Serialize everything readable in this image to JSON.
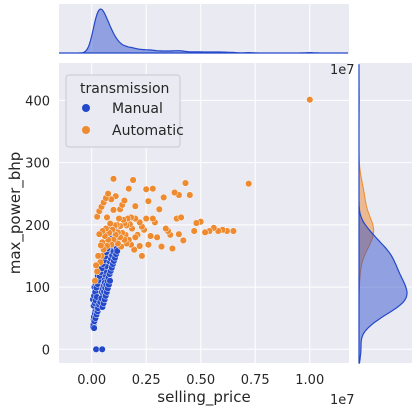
{
  "chart_data": {
    "type": "scatter",
    "style": "jointplot with marginal KDE/histograms",
    "xlabel": "selling_price",
    "ylabel": "max_power_bhp",
    "x_offset_label": "1e7",
    "xlim": [
      -1500000,
      11800000
    ],
    "ylim": [
      -22,
      460
    ],
    "x_ticks": [
      0.0,
      0.25,
      0.5,
      0.75,
      1.0
    ],
    "x_tick_labels": [
      "0.00",
      "0.25",
      "0.50",
      "0.75",
      "1.00"
    ],
    "y_ticks": [
      0,
      100,
      200,
      300,
      400
    ],
    "y_tick_labels": [
      "0",
      "100",
      "200",
      "300",
      "400"
    ],
    "grid": true,
    "legend": {
      "title": "transmission",
      "placement": "top-left",
      "entries": [
        {
          "name": "Manual",
          "color": "#2348c9"
        },
        {
          "name": "Automatic",
          "color": "#ee8a2f"
        }
      ]
    },
    "colors": {
      "background": "#eaeaf2",
      "grid": "#ffffff",
      "manual": "#2348c9",
      "automatic": "#ee8a2f"
    },
    "series": [
      {
        "name": "Manual",
        "points": [
          [
            60000,
            36
          ],
          [
            80000,
            40
          ],
          [
            100000,
            46
          ],
          [
            110000,
            34
          ],
          [
            120000,
            52
          ],
          [
            130000,
            58
          ],
          [
            140000,
            47
          ],
          [
            150000,
            63
          ],
          [
            160000,
            67
          ],
          [
            170000,
            55
          ],
          [
            180000,
            70
          ],
          [
            190000,
            74
          ],
          [
            200000,
            68
          ],
          [
            210000,
            82
          ],
          [
            220000,
            76
          ],
          [
            230000,
            88
          ],
          [
            240000,
            62
          ],
          [
            250000,
            90
          ],
          [
            260000,
            84
          ],
          [
            270000,
            98
          ],
          [
            280000,
            72
          ],
          [
            290000,
            95
          ],
          [
            300000,
            103
          ],
          [
            310000,
            86
          ],
          [
            320000,
            110
          ],
          [
            330000,
            92
          ],
          [
            340000,
            78
          ],
          [
            350000,
            118
          ],
          [
            360000,
            101
          ],
          [
            370000,
            122
          ],
          [
            380000,
            106
          ],
          [
            390000,
            88
          ],
          [
            400000,
            126
          ],
          [
            410000,
            112
          ],
          [
            420000,
            97
          ],
          [
            430000,
            130
          ],
          [
            440000,
            118
          ],
          [
            450000,
            104
          ],
          [
            460000,
            136
          ],
          [
            470000,
            124
          ],
          [
            480000,
            90
          ],
          [
            490000,
            142
          ],
          [
            500000,
            127
          ],
          [
            520000,
            109
          ],
          [
            540000,
            148
          ],
          [
            560000,
            132
          ],
          [
            580000,
            114
          ],
          [
            600000,
            151
          ],
          [
            620000,
            138
          ],
          [
            640000,
            121
          ],
          [
            660000,
            157
          ],
          [
            680000,
            143
          ],
          [
            700000,
            128
          ],
          [
            720000,
            162
          ],
          [
            740000,
            147
          ],
          [
            760000,
            133
          ],
          [
            780000,
            170
          ],
          [
            800000,
            154
          ],
          [
            820000,
            141
          ],
          [
            840000,
            176
          ],
          [
            860000,
            159
          ],
          [
            880000,
            146
          ],
          [
            900000,
            183
          ],
          [
            920000,
            164
          ],
          [
            940000,
            151
          ],
          [
            960000,
            188
          ],
          [
            980000,
            170
          ],
          [
            1000000,
            157
          ],
          [
            1050000,
            194
          ],
          [
            1100000,
            176
          ],
          [
            1150000,
            162
          ],
          [
            1200000,
            199
          ],
          [
            1250000,
            181
          ],
          [
            90000,
            48
          ],
          [
            140000,
            60
          ],
          [
            190000,
            69
          ],
          [
            240000,
            80
          ],
          [
            290000,
            87
          ],
          [
            340000,
            94
          ],
          [
            390000,
            101
          ],
          [
            440000,
            108
          ],
          [
            490000,
            114
          ],
          [
            540000,
            120
          ],
          [
            590000,
            126
          ],
          [
            640000,
            133
          ],
          [
            100000,
            52
          ],
          [
            150000,
            57
          ],
          [
            200000,
            63
          ],
          [
            250000,
            70
          ],
          [
            300000,
            75
          ],
          [
            350000,
            81
          ],
          [
            400000,
            86
          ],
          [
            450000,
            92
          ],
          [
            500000,
            97
          ],
          [
            550000,
            102
          ],
          [
            600000,
            107
          ],
          [
            120000,
            45
          ],
          [
            170000,
            50
          ],
          [
            220000,
            56
          ],
          [
            270000,
            61
          ],
          [
            320000,
            67
          ],
          [
            370000,
            72
          ],
          [
            420000,
            77
          ],
          [
            470000,
            83
          ],
          [
            520000,
            88
          ],
          [
            570000,
            93
          ],
          [
            620000,
            99
          ],
          [
            670000,
            104
          ],
          [
            720000,
            110
          ],
          [
            770000,
            115
          ],
          [
            820000,
            121
          ],
          [
            870000,
            126
          ],
          [
            920000,
            131
          ],
          [
            970000,
            137
          ],
          [
            1020000,
            142
          ],
          [
            1070000,
            147
          ],
          [
            1120000,
            153
          ],
          [
            1170000,
            158
          ],
          [
            200000,
            0
          ],
          [
            480000,
            0
          ],
          [
            130000,
            100
          ],
          [
            180000,
            105
          ],
          [
            230000,
            112
          ],
          [
            280000,
            118
          ],
          [
            330000,
            124
          ],
          [
            380000,
            131
          ],
          [
            430000,
            137
          ],
          [
            480000,
            143
          ],
          [
            530000,
            150
          ],
          [
            580000,
            156
          ],
          [
            630000,
            162
          ],
          [
            680000,
            169
          ],
          [
            730000,
            175
          ],
          [
            780000,
            181
          ],
          [
            830000,
            188
          ],
          [
            880000,
            194
          ],
          [
            60000,
            80
          ],
          [
            110000,
            86
          ],
          [
            160000,
            92
          ],
          [
            210000,
            99
          ],
          [
            260000,
            105
          ],
          [
            310000,
            111
          ],
          [
            360000,
            118
          ],
          [
            410000,
            124
          ],
          [
            460000,
            130
          ],
          [
            510000,
            137
          ],
          [
            560000,
            143
          ],
          [
            610000,
            149
          ],
          [
            660000,
            156
          ],
          [
            710000,
            162
          ],
          [
            760000,
            168
          ],
          [
            810000,
            175
          ],
          [
            90000,
            70
          ],
          [
            140000,
            74
          ],
          [
            190000,
            78
          ],
          [
            240000,
            84
          ],
          [
            290000,
            66
          ],
          [
            340000,
            72
          ],
          [
            390000,
            76
          ],
          [
            440000,
            82
          ],
          [
            490000,
            68
          ],
          [
            540000,
            74
          ],
          [
            590000,
            80
          ],
          [
            640000,
            86
          ],
          [
            690000,
            92
          ],
          [
            740000,
            98
          ],
          [
            790000,
            104
          ],
          [
            840000,
            110
          ]
        ]
      },
      {
        "name": "Automatic",
        "points": [
          [
            10000000,
            401
          ],
          [
            7200000,
            266
          ],
          [
            6500000,
            190
          ],
          [
            6200000,
            190
          ],
          [
            6000000,
            192
          ],
          [
            5800000,
            190
          ],
          [
            5600000,
            195
          ],
          [
            5400000,
            190
          ],
          [
            5200000,
            188
          ],
          [
            5000000,
            205
          ],
          [
            4800000,
            203
          ],
          [
            4700000,
            190
          ],
          [
            4500000,
            248
          ],
          [
            4300000,
            267
          ],
          [
            4200000,
            175
          ],
          [
            4000000,
            185
          ],
          [
            4000000,
            248
          ],
          [
            3900000,
            210
          ],
          [
            3800000,
            252
          ],
          [
            3700000,
            162
          ],
          [
            3600000,
            184
          ],
          [
            3500000,
            190
          ],
          [
            3400000,
            194
          ],
          [
            3200000,
            165
          ],
          [
            3000000,
            180
          ],
          [
            2900000,
            204
          ],
          [
            2800000,
            210
          ],
          [
            2800000,
            258
          ],
          [
            2700000,
            182
          ],
          [
            2600000,
            168
          ],
          [
            2500000,
            210
          ],
          [
            2500000,
            257
          ],
          [
            2400000,
            192
          ],
          [
            2300000,
            150
          ],
          [
            2300000,
            197
          ],
          [
            2200000,
            166
          ],
          [
            2200000,
            204
          ],
          [
            2100000,
            184
          ],
          [
            2000000,
            180
          ],
          [
            2000000,
            210
          ],
          [
            1950000,
            160
          ],
          [
            1900000,
            272
          ],
          [
            1850000,
            194
          ],
          [
            1800000,
            212
          ],
          [
            1800000,
            168
          ],
          [
            1750000,
            201
          ],
          [
            1700000,
            176
          ],
          [
            1700000,
            258
          ],
          [
            1650000,
            210
          ],
          [
            1600000,
            170
          ],
          [
            1600000,
            199
          ],
          [
            1550000,
            184
          ],
          [
            1500000,
            202
          ],
          [
            1500000,
            176
          ],
          [
            1450000,
            208
          ],
          [
            1400000,
            187
          ],
          [
            1350000,
            165
          ],
          [
            1300000,
            198
          ],
          [
            1300000,
            180
          ],
          [
            1250000,
            210
          ],
          [
            1200000,
            188
          ],
          [
            1200000,
            170
          ],
          [
            1150000,
            200
          ],
          [
            1100000,
            184
          ],
          [
            1100000,
            246
          ],
          [
            1050000,
            199
          ],
          [
            1000000,
            274
          ],
          [
            1000000,
            176
          ],
          [
            950000,
            192
          ],
          [
            900000,
            241
          ],
          [
            900000,
            168
          ],
          [
            850000,
            202
          ],
          [
            800000,
            187
          ],
          [
            750000,
            176
          ],
          [
            700000,
            212
          ],
          [
            700000,
            166
          ],
          [
            650000,
            194
          ],
          [
            600000,
            182
          ],
          [
            550000,
            160
          ],
          [
            500000,
            190
          ],
          [
            480000,
            172
          ],
          [
            450000,
            150
          ],
          [
            420000,
            167
          ],
          [
            400000,
            140
          ],
          [
            350000,
            185
          ],
          [
            300000,
            150
          ],
          [
            250000,
            125
          ],
          [
            200000,
            135
          ],
          [
            150000,
            110
          ],
          [
            250000,
            213
          ],
          [
            350000,
            222
          ],
          [
            450000,
            229
          ],
          [
            550000,
            236
          ],
          [
            650000,
            243
          ],
          [
            750000,
            250
          ],
          [
            1300000,
            225
          ],
          [
            1400000,
            232
          ],
          [
            1500000,
            239
          ],
          [
            2600000,
            238
          ],
          [
            3100000,
            225
          ],
          [
            3300000,
            244
          ],
          [
            4100000,
            212
          ],
          [
            2000000,
            230
          ],
          [
            1000000,
            224
          ]
        ]
      }
    ]
  }
}
